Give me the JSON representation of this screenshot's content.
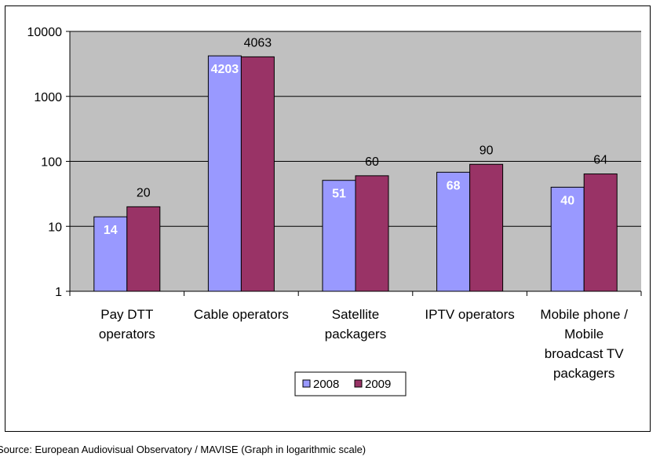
{
  "chart_data": {
    "type": "bar",
    "scale": "log",
    "categories": [
      [
        "Pay DTT",
        "operators"
      ],
      [
        "Cable operators"
      ],
      [
        "Satellite",
        "packagers"
      ],
      [
        "IPTV operators"
      ],
      [
        "Mobile phone /",
        "Mobile",
        "broadcast TV",
        "packagers"
      ]
    ],
    "series": [
      {
        "name": "2008",
        "values": [
          14,
          4203,
          51,
          68,
          40
        ],
        "labels": [
          "14",
          "4203",
          "51",
          "68",
          "40"
        ],
        "color": "#9999ff"
      },
      {
        "name": "2009",
        "values": [
          20,
          4063,
          60,
          90,
          64
        ],
        "labels": [
          "20",
          "4063",
          "60",
          "90",
          "64"
        ],
        "color": "#993366"
      }
    ],
    "ylim": [
      1,
      10000
    ],
    "yticks": [
      1,
      10,
      100,
      1000,
      10000
    ],
    "ytick_labels": [
      "1",
      "10",
      "100",
      "1000",
      "10000"
    ],
    "plot_background": "#c0c0c0",
    "grid": true,
    "legend": "bottom-center",
    "title": "",
    "xlabel": "",
    "ylabel": ""
  },
  "source": "Source: European Audiovisual Observatory / MAVISE (Graph in logarithmic scale)"
}
